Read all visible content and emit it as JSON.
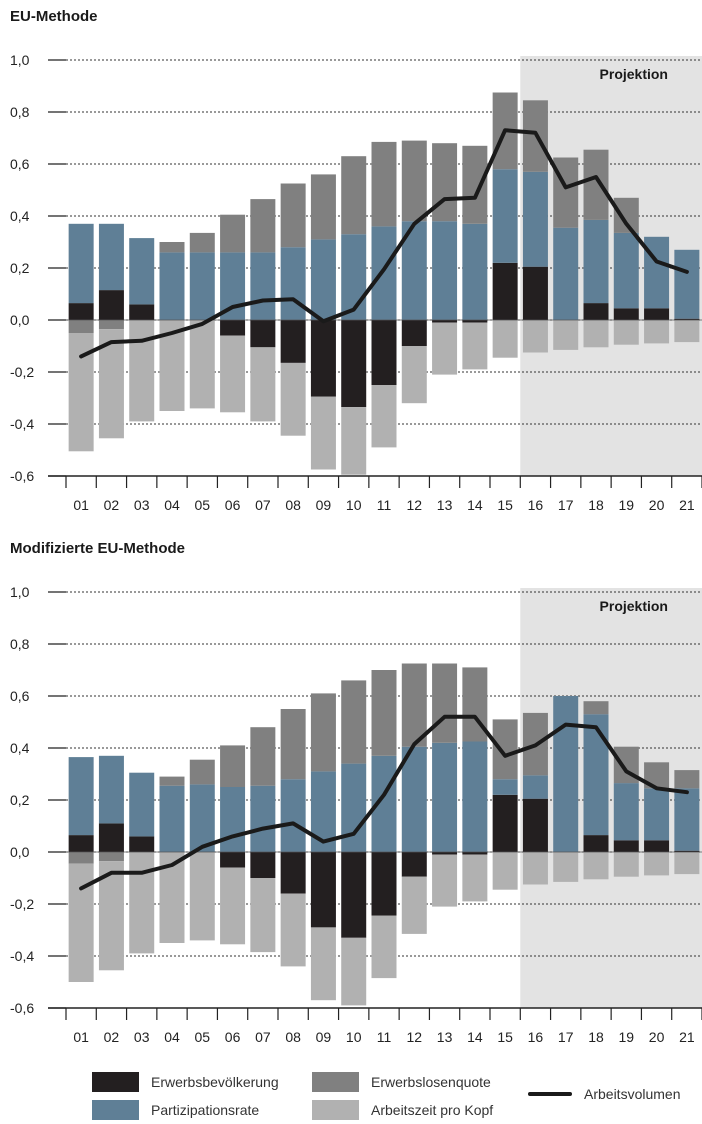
{
  "colors": {
    "erwerbsbevoelkerung": "#231f20",
    "erwerbslosenquote": "#808080",
    "partizipationsrate": "#5f7f96",
    "arbeitszeit": "#b1b1b1",
    "arbeitsvolumen": "#1a1a1a",
    "projection_bg": "#e3e3e3"
  },
  "legend": {
    "erwerbsbevoelkerung": "Erwerbsbevölkerung",
    "erwerbslosenquote": "Erwerbslosenquote",
    "partizipationsrate": "Partizipationsrate",
    "arbeitszeit": "Arbeitszeit pro Kopf",
    "arbeitsvolumen": "Arbeitsvolumen"
  },
  "chart_data": [
    {
      "type": "bar",
      "title": "EU-Methode",
      "projection_label": "Projektion",
      "projection_start": "16",
      "categories": [
        "01",
        "02",
        "03",
        "04",
        "05",
        "06",
        "07",
        "08",
        "09",
        "10",
        "11",
        "12",
        "13",
        "14",
        "15",
        "16",
        "17",
        "18",
        "19",
        "20",
        "21"
      ],
      "ylim": [
        -0.6,
        1.0
      ],
      "yticks": [
        "1,0",
        "0,8",
        "0,6",
        "0,4",
        "0,2",
        "0,0",
        "-0,2",
        "-0,4",
        "-0,6"
      ],
      "grid": true,
      "series": [
        {
          "name": "Erwerbsbevölkerung",
          "key": "erwerbsbevoelkerung",
          "values": [
            0.065,
            0.115,
            0.06,
            0,
            0,
            -0.06,
            -0.105,
            -0.165,
            -0.295,
            -0.335,
            -0.25,
            -0.1,
            -0.01,
            -0.01,
            0.22,
            0.205,
            0,
            0.065,
            0.045,
            0.045,
            0.005
          ]
        },
        {
          "name": "Partizipationsrate",
          "key": "partizipationsrate",
          "values": [
            0.305,
            0.255,
            0.255,
            0.26,
            0.26,
            0.26,
            0.26,
            0.28,
            0.31,
            0.33,
            0.36,
            0.38,
            0.38,
            0.37,
            0.36,
            0.365,
            0.355,
            0.32,
            0.29,
            0.275,
            0.265
          ]
        },
        {
          "name": "Erwerbslosenquote",
          "key": "erwerbslosenquote",
          "values": [
            -0.05,
            -0.035,
            0,
            0.04,
            0.075,
            0.145,
            0.205,
            0.245,
            0.25,
            0.3,
            0.325,
            0.31,
            0.3,
            0.3,
            0.295,
            0.275,
            0.27,
            0.27,
            0.135,
            0,
            0
          ]
        },
        {
          "name": "Arbeitszeit pro Kopf",
          "key": "arbeitszeit",
          "values": [
            -0.455,
            -0.42,
            -0.39,
            -0.35,
            -0.34,
            -0.295,
            -0.285,
            -0.28,
            -0.28,
            -0.26,
            -0.24,
            -0.22,
            -0.2,
            -0.18,
            -0.145,
            -0.125,
            -0.115,
            -0.105,
            -0.095,
            -0.09,
            -0.085
          ]
        }
      ],
      "line": {
        "name": "Arbeitsvolumen",
        "values": [
          -0.14,
          -0.085,
          -0.08,
          -0.05,
          -0.015,
          0.05,
          0.075,
          0.08,
          -0.005,
          0.04,
          0.195,
          0.37,
          0.465,
          0.47,
          0.73,
          0.72,
          0.51,
          0.55,
          0.37,
          0.225,
          0.185
        ]
      }
    },
    {
      "type": "bar",
      "title": "Modifizierte EU-Methode",
      "projection_label": "Projektion",
      "projection_start": "16",
      "categories": [
        "01",
        "02",
        "03",
        "04",
        "05",
        "06",
        "07",
        "08",
        "09",
        "10",
        "11",
        "12",
        "13",
        "14",
        "15",
        "16",
        "17",
        "18",
        "19",
        "20",
        "21"
      ],
      "ylim": [
        -0.6,
        1.0
      ],
      "yticks": [
        "1,0",
        "0,8",
        "0,6",
        "0,4",
        "0,2",
        "0,0",
        "-0,2",
        "-0,4",
        "-0,6"
      ],
      "grid": true,
      "series": [
        {
          "name": "Erwerbsbevölkerung",
          "key": "erwerbsbevoelkerung",
          "values": [
            0.065,
            0.11,
            0.06,
            0,
            0,
            -0.06,
            -0.1,
            -0.16,
            -0.29,
            -0.33,
            -0.245,
            -0.095,
            -0.01,
            -0.01,
            0.22,
            0.205,
            0,
            0.065,
            0.045,
            0.045,
            0.005
          ]
        },
        {
          "name": "Partizipationsrate",
          "key": "partizipationsrate",
          "values": [
            0.3,
            0.26,
            0.245,
            0.255,
            0.26,
            0.25,
            0.255,
            0.28,
            0.31,
            0.34,
            0.37,
            0.405,
            0.42,
            0.425,
            0.06,
            0.09,
            0.6,
            0.465,
            0.22,
            0.2,
            0.24
          ]
        },
        {
          "name": "Erwerbslosenquote",
          "key": "erwerbslosenquote",
          "values": [
            -0.045,
            -0.035,
            0,
            0.035,
            0.095,
            0.16,
            0.225,
            0.27,
            0.3,
            0.32,
            0.33,
            0.32,
            0.305,
            0.285,
            0.23,
            0.24,
            0,
            0.05,
            0.14,
            0.1,
            0.07
          ]
        },
        {
          "name": "Arbeitszeit pro Kopf",
          "key": "arbeitszeit",
          "values": [
            -0.455,
            -0.42,
            -0.39,
            -0.35,
            -0.34,
            -0.295,
            -0.285,
            -0.28,
            -0.28,
            -0.26,
            -0.24,
            -0.22,
            -0.2,
            -0.18,
            -0.145,
            -0.125,
            -0.115,
            -0.105,
            -0.095,
            -0.09,
            -0.085
          ]
        }
      ],
      "line": {
        "name": "Arbeitsvolumen",
        "values": [
          -0.14,
          -0.08,
          -0.08,
          -0.05,
          0.02,
          0.06,
          0.09,
          0.11,
          0.04,
          0.07,
          0.22,
          0.415,
          0.52,
          0.52,
          0.37,
          0.41,
          0.49,
          0.48,
          0.31,
          0.245,
          0.23
        ]
      }
    }
  ]
}
